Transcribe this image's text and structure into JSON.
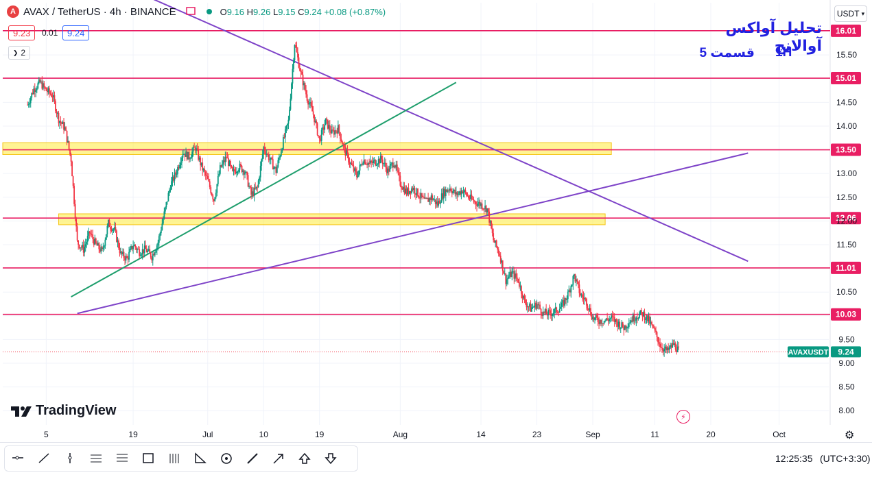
{
  "header": {
    "symbol": "AVAX / TetherUS · 4h · BINANCE",
    "logo_letter": "A",
    "o_label": "O",
    "o_value": "9.16",
    "h_label": "H",
    "h_value": "9.26",
    "l_label": "L",
    "l_value": "9.15",
    "c_label": "C",
    "c_value": "9.24",
    "change": "+0.08 (+0.87%)",
    "sell_price": "9.23",
    "spread": "0.01",
    "buy_price": "9.24",
    "indicators_count": "2",
    "currency": "USDT"
  },
  "annotations": {
    "title_fa": "تحلیل آواکس آوالانچ",
    "part_fa": "قسمت 5",
    "timeframe": "1H"
  },
  "watermark": "TradingView",
  "footer": {
    "clock": "12:25:35",
    "timezone": "(UTC+3:30)"
  },
  "toolbar": {
    "tools": [
      "horizontal-ray-icon",
      "trend-line-icon",
      "vertical-line-icon",
      "parallel-channel-icon",
      "fib-retracement-icon",
      "rectangle-icon",
      "long-position-icon",
      "triangle-pattern-icon",
      "circle-icon",
      "brush-icon",
      "arrow-icon",
      "arrow-up-icon",
      "arrow-down-icon"
    ]
  },
  "colors": {
    "up": "#089981",
    "down": "#f23645",
    "level": "#e91e63",
    "zone": "#ffeb3b",
    "trend_purple": "#7e43c8",
    "trend_green": "#1e9e6c",
    "annotation": "#2121e0",
    "last_price": "#089981"
  },
  "chart_data": {
    "type": "candlestick",
    "symbol": "AVAXUSDT",
    "timeframe": "4h",
    "y_ticks": [
      8.0,
      8.5,
      9.0,
      9.5,
      10.0,
      10.5,
      11.0,
      11.5,
      12.0,
      12.5,
      13.0,
      13.5,
      14.0,
      14.5,
      15.0,
      15.5,
      16.0
    ],
    "ylim": [
      7.7,
      16.6
    ],
    "x_ticks": [
      "5",
      "19",
      "Jul",
      "10",
      "19",
      "Aug",
      "14",
      "23",
      "Sep",
      "11",
      "20",
      "Oct"
    ],
    "x_tick_dates": [
      "2024-06-05",
      "2024-06-19",
      "2024-07-01",
      "2024-07-10",
      "2024-07-19",
      "2024-08-01",
      "2024-08-14",
      "2024-08-23",
      "2024-09-01",
      "2024-09-11",
      "2024-09-20",
      "2024-10-01"
    ],
    "horizontal_levels": [
      16.01,
      15.01,
      13.5,
      12.06,
      11.01,
      10.03
    ],
    "supply_demand_zones": [
      {
        "from_date": "2024-05-29",
        "to_date": "2024-09-04",
        "low": 13.4,
        "high": 13.65
      },
      {
        "from_date": "2024-06-07",
        "to_date": "2024-09-03",
        "low": 11.92,
        "high": 12.15
      }
    ],
    "trend_lines": [
      {
        "color": "purple",
        "start": [
          "2024-06-01",
          "17.9"
        ],
        "end": [
          "2024-09-26",
          "11.15"
        ]
      },
      {
        "color": "purple",
        "start": [
          "2024-06-10",
          "10.05"
        ],
        "end": [
          "2024-09-26",
          "13.43"
        ]
      },
      {
        "color": "green",
        "start": [
          "2024-06-09",
          "10.40"
        ],
        "end": [
          "2024-08-10",
          "14.92"
        ]
      }
    ],
    "last_price": {
      "label": "AVAXUSDT",
      "value": "9.24"
    },
    "price_path": [
      [
        "2024-06-02",
        14.45
      ],
      [
        "2024-06-03",
        14.78
      ],
      [
        "2024-06-04",
        14.92
      ],
      [
        "2024-06-05",
        14.75
      ],
      [
        "2024-06-06",
        14.65
      ],
      [
        "2024-06-07",
        14.15
      ],
      [
        "2024-06-08",
        13.95
      ],
      [
        "2024-06-09",
        13.3
      ],
      [
        "2024-06-10",
        11.55
      ],
      [
        "2024-06-11",
        11.4
      ],
      [
        "2024-06-12",
        11.75
      ],
      [
        "2024-06-13",
        11.5
      ],
      [
        "2024-06-14",
        11.35
      ],
      [
        "2024-06-15",
        11.95
      ],
      [
        "2024-06-16",
        11.8
      ],
      [
        "2024-06-17",
        11.3
      ],
      [
        "2024-06-18",
        11.2
      ],
      [
        "2024-06-19",
        11.5
      ],
      [
        "2024-06-20",
        11.35
      ],
      [
        "2024-06-21",
        11.4
      ],
      [
        "2024-06-22",
        11.25
      ],
      [
        "2024-06-23",
        11.55
      ],
      [
        "2024-06-24",
        12.15
      ],
      [
        "2024-06-25",
        12.75
      ],
      [
        "2024-06-26",
        13.05
      ],
      [
        "2024-06-27",
        13.45
      ],
      [
        "2024-06-28",
        13.35
      ],
      [
        "2024-06-29",
        13.55
      ],
      [
        "2024-06-30",
        13.15
      ],
      [
        "2024-07-01",
        12.85
      ],
      [
        "2024-07-02",
        12.45
      ],
      [
        "2024-07-03",
        13.1
      ],
      [
        "2024-07-04",
        13.35
      ],
      [
        "2024-07-05",
        13.0
      ],
      [
        "2024-07-06",
        13.15
      ],
      [
        "2024-07-07",
        13.05
      ],
      [
        "2024-07-08",
        12.55
      ],
      [
        "2024-07-09",
        12.7
      ],
      [
        "2024-07-10",
        13.55
      ],
      [
        "2024-07-11",
        13.3
      ],
      [
        "2024-07-12",
        13.05
      ],
      [
        "2024-07-13",
        13.6
      ],
      [
        "2024-07-14",
        14.1
      ],
      [
        "2024-07-15",
        15.75
      ],
      [
        "2024-07-16",
        15.1
      ],
      [
        "2024-07-17",
        14.6
      ],
      [
        "2024-07-18",
        14.25
      ],
      [
        "2024-07-19",
        13.7
      ],
      [
        "2024-07-20",
        14.1
      ],
      [
        "2024-07-21",
        13.85
      ],
      [
        "2024-07-22",
        13.95
      ],
      [
        "2024-07-23",
        13.5
      ],
      [
        "2024-07-24",
        13.2
      ],
      [
        "2024-07-25",
        12.95
      ],
      [
        "2024-07-26",
        13.3
      ],
      [
        "2024-07-27",
        13.2
      ],
      [
        "2024-07-28",
        13.25
      ],
      [
        "2024-07-29",
        13.3
      ],
      [
        "2024-07-30",
        13.05
      ],
      [
        "2024-07-31",
        13.25
      ],
      [
        "2024-08-01",
        12.8
      ],
      [
        "2024-08-02",
        12.6
      ],
      [
        "2024-08-03",
        12.7
      ],
      [
        "2024-08-04",
        12.55
      ],
      [
        "2024-08-05",
        12.4
      ],
      [
        "2024-08-06",
        12.5
      ],
      [
        "2024-08-07",
        12.35
      ],
      [
        "2024-08-08",
        12.6
      ],
      [
        "2024-08-09",
        12.7
      ],
      [
        "2024-08-10",
        12.55
      ],
      [
        "2024-08-11",
        12.65
      ],
      [
        "2024-08-12",
        12.5
      ],
      [
        "2024-08-13",
        12.4
      ],
      [
        "2024-08-14",
        12.35
      ],
      [
        "2024-08-15",
        12.25
      ],
      [
        "2024-08-16",
        11.6
      ],
      [
        "2024-08-17",
        11.3
      ],
      [
        "2024-08-18",
        10.75
      ],
      [
        "2024-08-19",
        10.9
      ],
      [
        "2024-08-20",
        10.75
      ],
      [
        "2024-08-21",
        10.3
      ],
      [
        "2024-08-22",
        10.15
      ],
      [
        "2024-08-23",
        10.25
      ],
      [
        "2024-08-24",
        10.05
      ],
      [
        "2024-08-25",
        10.05
      ],
      [
        "2024-08-26",
        10.1
      ],
      [
        "2024-08-27",
        10.2
      ],
      [
        "2024-08-28",
        10.45
      ],
      [
        "2024-08-29",
        10.85
      ],
      [
        "2024-08-30",
        10.45
      ],
      [
        "2024-08-31",
        10.3
      ],
      [
        "2024-09-01",
        9.95
      ],
      [
        "2024-09-02",
        9.9
      ],
      [
        "2024-09-03",
        9.9
      ],
      [
        "2024-09-04",
        9.95
      ],
      [
        "2024-09-05",
        9.85
      ],
      [
        "2024-09-06",
        9.75
      ],
      [
        "2024-09-07",
        9.9
      ],
      [
        "2024-09-08",
        10.0
      ],
      [
        "2024-09-09",
        10.05
      ],
      [
        "2024-09-10",
        9.9
      ],
      [
        "2024-09-11",
        9.65
      ],
      [
        "2024-09-12",
        9.35
      ],
      [
        "2024-09-13",
        9.25
      ],
      [
        "2024-09-14",
        9.4
      ],
      [
        "2024-09-15",
        9.24
      ]
    ]
  }
}
